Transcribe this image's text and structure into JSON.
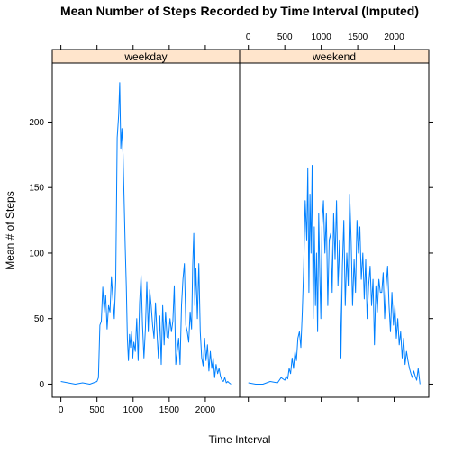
{
  "chart_data": {
    "type": "line",
    "title": "Mean Number of Steps Recorded by Time Interval (Imputed)",
    "xlabel": "Time Interval",
    "ylabel": "Mean # of Steps",
    "xlim": [
      -120,
      2475
    ],
    "ylim": [
      -10,
      245
    ],
    "x_ticks": [
      0,
      500,
      1000,
      1500,
      2000
    ],
    "y_ticks": [
      0,
      50,
      100,
      150,
      200
    ],
    "grid": false,
    "colors": {
      "line": "#0080ff",
      "strip": "#ffe5cc"
    },
    "panels": [
      {
        "name": "weekday",
        "x": [
          0,
          100,
          200,
          300,
          400,
          500,
          520,
          540,
          560,
          580,
          600,
          620,
          640,
          660,
          680,
          700,
          720,
          740,
          760,
          780,
          800,
          815,
          830,
          845,
          860,
          875,
          890,
          905,
          920,
          935,
          950,
          965,
          980,
          995,
          1010,
          1030,
          1050,
          1070,
          1090,
          1110,
          1130,
          1150,
          1170,
          1190,
          1210,
          1230,
          1250,
          1270,
          1290,
          1310,
          1330,
          1350,
          1370,
          1390,
          1410,
          1430,
          1450,
          1470,
          1490,
          1510,
          1530,
          1550,
          1570,
          1590,
          1610,
          1630,
          1650,
          1670,
          1690,
          1710,
          1730,
          1750,
          1770,
          1790,
          1810,
          1825,
          1840,
          1855,
          1870,
          1890,
          1910,
          1930,
          1950,
          1970,
          1990,
          2010,
          2030,
          2050,
          2070,
          2090,
          2110,
          2130,
          2150,
          2170,
          2190,
          2210,
          2230,
          2250,
          2270,
          2290,
          2310,
          2330,
          2355
        ],
        "values": [
          2,
          1,
          0,
          1,
          0,
          2,
          5,
          45,
          48,
          74,
          55,
          68,
          42,
          60,
          55,
          82,
          65,
          50,
          80,
          188,
          205,
          230,
          180,
          195,
          175,
          140,
          105,
          75,
          35,
          18,
          38,
          28,
          40,
          20,
          32,
          25,
          50,
          18,
          62,
          83,
          45,
          20,
          42,
          78,
          40,
          72,
          60,
          45,
          35,
          62,
          40,
          20,
          52,
          15,
          60,
          30,
          55,
          36,
          35,
          50,
          40,
          48,
          75,
          15,
          25,
          35,
          15,
          60,
          80,
          92,
          45,
          40,
          32,
          55,
          42,
          90,
          115,
          60,
          88,
          50,
          92,
          40,
          20,
          14,
          35,
          18,
          30,
          10,
          25,
          12,
          20,
          5,
          15,
          8,
          12,
          6,
          3,
          2,
          5,
          1,
          2,
          1,
          0
        ]
      },
      {
        "name": "weekend",
        "x": [
          0,
          100,
          200,
          300,
          400,
          450,
          500,
          520,
          540,
          560,
          580,
          600,
          620,
          640,
          660,
          680,
          700,
          720,
          740,
          760,
          780,
          800,
          815,
          830,
          845,
          860,
          875,
          890,
          905,
          920,
          935,
          950,
          965,
          980,
          995,
          1010,
          1030,
          1050,
          1070,
          1090,
          1110,
          1130,
          1150,
          1170,
          1190,
          1210,
          1230,
          1250,
          1270,
          1290,
          1310,
          1330,
          1350,
          1370,
          1390,
          1410,
          1430,
          1450,
          1470,
          1490,
          1510,
          1530,
          1550,
          1570,
          1590,
          1610,
          1630,
          1650,
          1670,
          1690,
          1710,
          1730,
          1750,
          1770,
          1790,
          1810,
          1830,
          1850,
          1870,
          1890,
          1910,
          1930,
          1950,
          1970,
          1990,
          2010,
          2030,
          2050,
          2070,
          2090,
          2110,
          2130,
          2150,
          2170,
          2190,
          2210,
          2230,
          2250,
          2270,
          2290,
          2310,
          2330,
          2355
        ],
        "values": [
          1,
          0,
          0,
          2,
          1,
          5,
          3,
          6,
          4,
          12,
          8,
          20,
          12,
          25,
          18,
          35,
          40,
          28,
          55,
          90,
          140,
          110,
          165,
          70,
          145,
          100,
          167,
          50,
          120,
          60,
          100,
          40,
          130,
          85,
          50,
          120,
          140,
          100,
          130,
          60,
          110,
          115,
          70,
          130,
          95,
          140,
          75,
          110,
          20,
          90,
          125,
          60,
          100,
          75,
          145,
          110,
          60,
          95,
          70,
          125,
          100,
          120,
          80,
          100,
          65,
          95,
          50,
          75,
          90,
          60,
          80,
          30,
          75,
          55,
          80,
          70,
          70,
          85,
          50,
          75,
          90,
          60,
          40,
          70,
          45,
          60,
          35,
          50,
          30,
          40,
          20,
          35,
          15,
          25,
          18,
          12,
          8,
          5,
          10,
          6,
          3,
          12,
          0
        ]
      }
    ]
  }
}
